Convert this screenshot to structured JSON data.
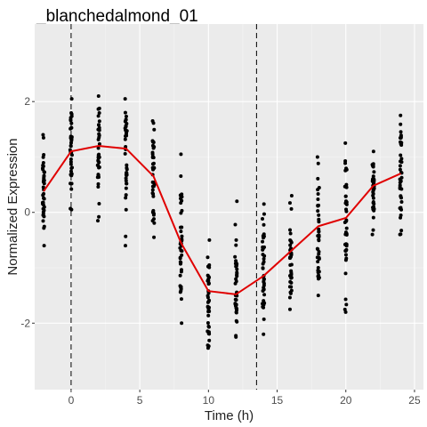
{
  "chart_data": {
    "type": "scatter",
    "title": "_blanchedalmond_01",
    "xlabel": "Time (h)",
    "ylabel": "Normalized Expression",
    "xlim": [
      -2.65,
      25.65
    ],
    "ylim": [
      -3.2,
      3.4
    ],
    "x_ticks": [
      0,
      5,
      10,
      15,
      20,
      25
    ],
    "y_ticks": [
      -2,
      0,
      2
    ],
    "grid": true,
    "vlines": [
      0,
      13.5
    ],
    "colors": {
      "panel": "#ebebeb",
      "grid_major": "#ffffff",
      "grid_minor": "#f5f5f5",
      "points": "#000000",
      "mean_line": "#e00000"
    },
    "series": [
      {
        "type": "strip",
        "timepoints": [
          {
            "x": -2,
            "min": -0.6,
            "max": 1.4,
            "dense_min": -0.3,
            "dense_max": 1.0
          },
          {
            "x": 0,
            "min": 0.05,
            "max": 2.05,
            "dense_min": 0.4,
            "dense_max": 1.8
          },
          {
            "x": 2,
            "min": -0.15,
            "max": 2.1,
            "dense_min": 0.5,
            "dense_max": 1.9
          },
          {
            "x": 4,
            "min": -0.6,
            "max": 2.05,
            "dense_min": 0.4,
            "dense_max": 1.8
          },
          {
            "x": 6,
            "min": -0.45,
            "max": 1.65,
            "dense_min": -0.2,
            "dense_max": 1.3
          },
          {
            "x": 8,
            "min": -2.0,
            "max": 1.05,
            "dense_min": -1.5,
            "dense_max": 0.4
          },
          {
            "x": 10,
            "min": -2.45,
            "max": -0.5,
            "dense_min": -2.2,
            "dense_max": -0.9
          },
          {
            "x": 12,
            "min": -2.25,
            "max": 0.2,
            "dense_min": -2.0,
            "dense_max": -0.8
          },
          {
            "x": 14,
            "min": -2.2,
            "max": 0.15,
            "dense_min": -1.8,
            "dense_max": -0.3
          },
          {
            "x": 16,
            "min": -1.75,
            "max": 0.3,
            "dense_min": -1.5,
            "dense_max": -0.1
          },
          {
            "x": 18,
            "min": -1.5,
            "max": 1.0,
            "dense_min": -1.2,
            "dense_max": 0.6
          },
          {
            "x": 20,
            "min": -1.8,
            "max": 1.25,
            "dense_min": -0.9,
            "dense_max": 0.9
          },
          {
            "x": 22,
            "min": -0.4,
            "max": 1.1,
            "dense_min": 0.0,
            "dense_max": 0.9
          },
          {
            "x": 24,
            "min": -0.4,
            "max": 1.75,
            "dense_min": -0.1,
            "dense_max": 1.5
          }
        ]
      },
      {
        "type": "line",
        "x": [
          -2,
          0,
          2,
          4,
          6,
          8,
          10,
          12,
          14,
          16,
          18,
          20,
          22,
          24
        ],
        "y": [
          0.38,
          1.1,
          1.2,
          1.15,
          0.65,
          -0.55,
          -1.42,
          -1.48,
          -1.15,
          -0.7,
          -0.25,
          -0.1,
          0.48,
          0.7
        ]
      }
    ]
  }
}
